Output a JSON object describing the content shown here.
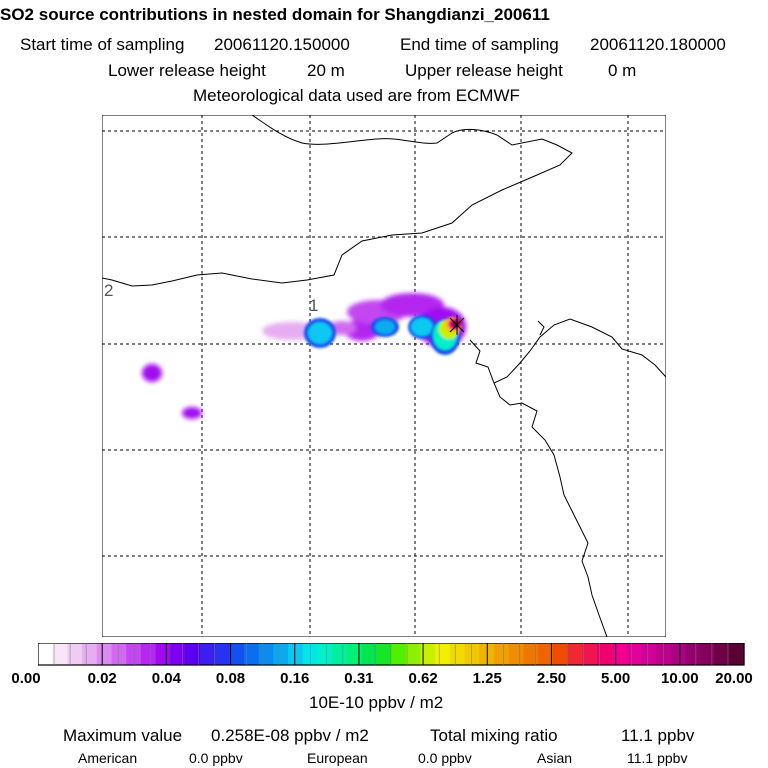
{
  "header": {
    "title": "SO2 source contributions in nested domain for Shangdianzi_200611",
    "start_label": "Start time of sampling",
    "start_value": "20061120.150000",
    "end_label": "End time of sampling",
    "end_value": "20061120.180000",
    "lower_label": "Lower release height",
    "lower_value": "20 m",
    "upper_label": "Upper release height",
    "upper_value": "0 m",
    "met_line": "Meteorological data used are from ECMWF"
  },
  "map": {
    "grid_labels": [
      "2",
      "1"
    ],
    "station_marker": "x-marker-icon"
  },
  "colorbar": {
    "labels": [
      "0.00",
      "0.02",
      "0.04",
      "0.08",
      "0.16",
      "0.31",
      "0.62",
      "1.25",
      "2.50",
      "5.00",
      "10.00",
      "20.00"
    ],
    "unit": "10E-10 ppbv / m2",
    "colors": [
      "#ffffff",
      "#f8e6f8",
      "#f0ccf0",
      "#e6aef0",
      "#dc8cf0",
      "#d26af0",
      "#c346f0",
      "#b428f0",
      "#a00af0",
      "#7d00f0",
      "#5a00f0",
      "#3c1ef0",
      "#2832f0",
      "#1450f0",
      "#0a6ef0",
      "#0a8cf0",
      "#0aaaf0",
      "#0ac8f0",
      "#00e6e6",
      "#00f0c8",
      "#00f0a0",
      "#00f078",
      "#00e650",
      "#14e628",
      "#50f000",
      "#8cf000",
      "#c8f000",
      "#f0f000",
      "#f0dc00",
      "#f0c800",
      "#f0b400",
      "#f0a000",
      "#f08c00",
      "#f07800",
      "#f06400",
      "#f04b00",
      "#f02832",
      "#f01450",
      "#f0006e",
      "#f0008c",
      "#e6009a",
      "#d20096",
      "#be008c",
      "#aa0082",
      "#96006e",
      "#82005a",
      "#6e0046",
      "#5a0032"
    ]
  },
  "stats": {
    "max_label": "Maximum value",
    "max_value": "0.258E-08 ppbv / m2",
    "total_label": "Total mixing ratio",
    "total_value": "11.1 ppbv",
    "american_label": "American",
    "american_value": "0.0 ppbv",
    "european_label": "European",
    "european_value": "0.0 ppbv",
    "asian_label": "Asian",
    "asian_value": "11.1 ppbv"
  }
}
